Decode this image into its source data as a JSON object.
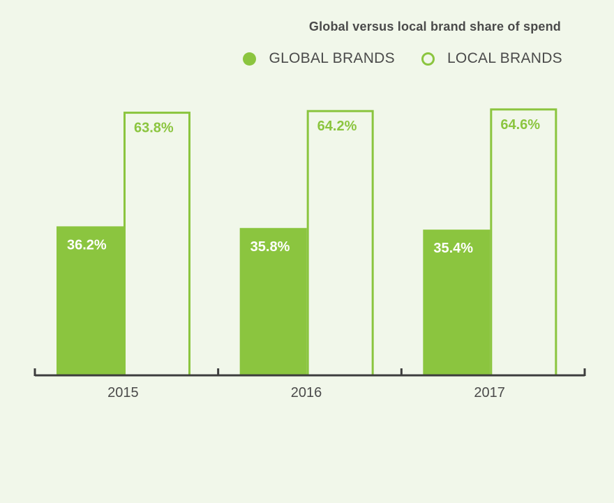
{
  "colors": {
    "global": "#8bc53f",
    "local": "#8bc53f",
    "axis": "#3d3d3d",
    "text": "#4a4a4a",
    "background": "#f1f7ea"
  },
  "chart_data": {
    "type": "bar",
    "title": "Global versus local brand share of spend",
    "categories": [
      "2015",
      "2016",
      "2017"
    ],
    "series": [
      {
        "name": "GLOBAL BRANDS",
        "style": "filled",
        "values": [
          36.2,
          35.8,
          35.4
        ],
        "labels": [
          "36.2%",
          "35.8%",
          "35.4%"
        ]
      },
      {
        "name": "LOCAL BRANDS",
        "style": "outline",
        "values": [
          63.8,
          64.2,
          64.6
        ],
        "labels": [
          "63.8%",
          "64.2%",
          "64.6%"
        ]
      }
    ],
    "ylim": [
      0,
      100
    ],
    "xlabel": "",
    "ylabel": "",
    "grid": false,
    "legend_position": "top-right"
  }
}
